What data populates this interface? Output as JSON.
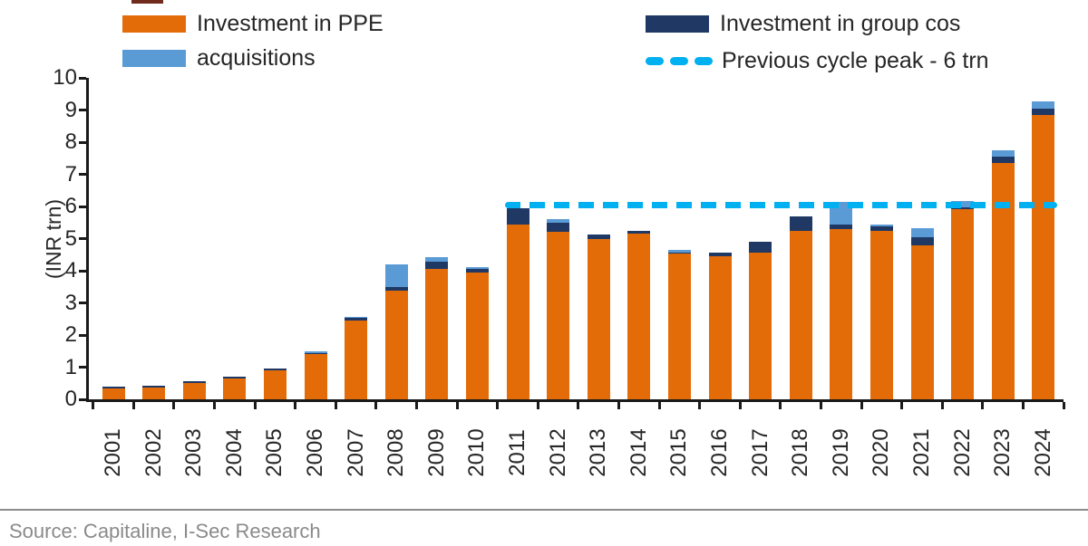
{
  "legend": {
    "ppe": {
      "label": "Investment in PPE",
      "color": "#E36C09"
    },
    "acq": {
      "label": "acquisitions",
      "color": "#5B9BD5"
    },
    "group": {
      "label": "Investment in group cos",
      "color": "#1F3864"
    },
    "peak": {
      "label": "Previous cycle peak - 6 trn",
      "color": "#00B0F0"
    }
  },
  "chart_data": {
    "type": "bar",
    "stacked": true,
    "ylabel": "(INR trn)",
    "ylim": [
      0,
      10
    ],
    "ytick_step": 1,
    "grid": false,
    "legend_position": "top",
    "categories": [
      "2001",
      "2002",
      "2003",
      "2004",
      "2005",
      "2006",
      "2007",
      "2008",
      "2009",
      "2010",
      "2011",
      "2012",
      "2013",
      "2014",
      "2015",
      "2016",
      "2017",
      "2018",
      "2019",
      "2020",
      "2021",
      "2022",
      "2023",
      "2024"
    ],
    "series": [
      {
        "name": "Investment in PPE",
        "color": "#E36C09",
        "values": [
          0.35,
          0.38,
          0.5,
          0.65,
          0.9,
          1.4,
          2.45,
          3.38,
          4.05,
          3.95,
          5.45,
          5.22,
          5.0,
          5.15,
          4.55,
          4.45,
          4.57,
          5.25,
          5.3,
          5.25,
          4.8,
          5.92,
          7.35,
          8.85
        ]
      },
      {
        "name": "Investment in group cos",
        "color": "#1F3864",
        "values": [
          0.05,
          0.05,
          0.07,
          0.06,
          0.06,
          0.05,
          0.08,
          0.1,
          0.23,
          0.12,
          0.5,
          0.28,
          0.12,
          0.1,
          0.02,
          0.12,
          0.33,
          0.43,
          0.15,
          0.12,
          0.23,
          0.06,
          0.2,
          0.2
        ]
      },
      {
        "name": "acquisitions",
        "color": "#5B9BD5",
        "values": [
          0.0,
          0.0,
          0.0,
          0.0,
          0.0,
          0.05,
          0.02,
          0.72,
          0.15,
          0.05,
          0.0,
          0.1,
          0.0,
          0.0,
          0.08,
          0.0,
          0.0,
          0.0,
          0.7,
          0.06,
          0.3,
          0.18,
          0.2,
          0.22
        ]
      }
    ],
    "reference_line": {
      "label": "Previous cycle peak - 6 trn",
      "value": 6,
      "color": "#00B0F0",
      "style": "dashed",
      "starts_at_category": "2011",
      "ends_at": "right-edge"
    }
  },
  "y_axis": {
    "title": "(INR trn)",
    "tick_labels": [
      "0",
      "1",
      "2",
      "3",
      "4",
      "5",
      "6",
      "7",
      "8",
      "9",
      "10"
    ]
  },
  "footer": {
    "source": "Source: Capitaline, I-Sec Research"
  }
}
